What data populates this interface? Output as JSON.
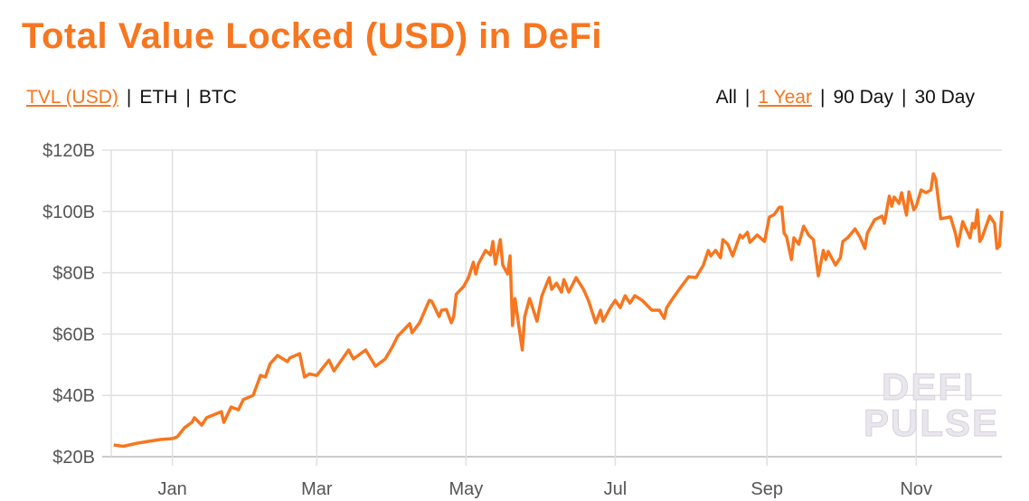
{
  "title": "Total Value Locked (USD) in DeFi",
  "metric_tabs": [
    {
      "label": "TVL (USD)",
      "active": true
    },
    {
      "label": "ETH",
      "active": false
    },
    {
      "label": "BTC",
      "active": false
    }
  ],
  "range_tabs": [
    {
      "label": "All",
      "active": false
    },
    {
      "label": "1 Year",
      "active": true
    },
    {
      "label": "90 Day",
      "active": false
    },
    {
      "label": "30 Day",
      "active": false
    }
  ],
  "separator": "|",
  "watermark": [
    "DEFI",
    "PULSE"
  ],
  "colors": {
    "accent": "#f7761f",
    "line": "#f7761f",
    "grid": "#e0e0e0"
  },
  "chart_data": {
    "type": "line",
    "title": "Total Value Locked (USD) in DeFi",
    "xlabel": "",
    "ylabel": "",
    "xlim": [
      "2020-12-07",
      "2021-12-06"
    ],
    "ylim": [
      20,
      120
    ],
    "y_unit": "B USD",
    "yticks": [
      {
        "v": 20,
        "label": "$20B"
      },
      {
        "v": 40,
        "label": "$40B"
      },
      {
        "v": 60,
        "label": "$60B"
      },
      {
        "v": 80,
        "label": "$80B"
      },
      {
        "v": 100,
        "label": "$100B"
      },
      {
        "v": 120,
        "label": "$120B"
      }
    ],
    "xticks": [
      {
        "d": "2021-01-01",
        "label": "Jan"
      },
      {
        "d": "2021-03-01",
        "label": "Mar"
      },
      {
        "d": "2021-05-01",
        "label": "May"
      },
      {
        "d": "2021-07-01",
        "label": "Jul"
      },
      {
        "d": "2021-09-01",
        "label": "Sep"
      },
      {
        "d": "2021-11-01",
        "label": "Nov"
      }
    ],
    "grid": true,
    "series": [
      {
        "points": [
          [
            "2020-12-08",
            23.8
          ],
          [
            "2020-12-12",
            23.4
          ],
          [
            "2020-12-17",
            24.3
          ],
          [
            "2020-12-22",
            25.0
          ],
          [
            "2020-12-27",
            25.6
          ],
          [
            "2021-01-01",
            25.9
          ],
          [
            "2021-01-03",
            26.5
          ],
          [
            "2021-01-06",
            29.5
          ],
          [
            "2021-01-09",
            31.2
          ],
          [
            "2021-01-10",
            32.7
          ],
          [
            "2021-01-13",
            30.3
          ],
          [
            "2021-01-15",
            32.7
          ],
          [
            "2021-01-21",
            34.7
          ],
          [
            "2021-01-22",
            31.2
          ],
          [
            "2021-01-25",
            36.2
          ],
          [
            "2021-01-28",
            35.3
          ],
          [
            "2021-01-30",
            38.6
          ],
          [
            "2021-02-03",
            40
          ],
          [
            "2021-02-06",
            46.5
          ],
          [
            "2021-02-08",
            46
          ],
          [
            "2021-02-10",
            50.4
          ],
          [
            "2021-02-13",
            53
          ],
          [
            "2021-02-17",
            51
          ],
          [
            "2021-02-18",
            52.2
          ],
          [
            "2021-02-22",
            53.6
          ],
          [
            "2021-02-24",
            46
          ],
          [
            "2021-02-26",
            47
          ],
          [
            "2021-03-01",
            46.5
          ],
          [
            "2021-03-06",
            51.5
          ],
          [
            "2021-03-08",
            48
          ],
          [
            "2021-03-14",
            54.8
          ],
          [
            "2021-03-16",
            51.9
          ],
          [
            "2021-03-21",
            54.8
          ],
          [
            "2021-03-25",
            49.5
          ],
          [
            "2021-03-29",
            51.9
          ],
          [
            "2021-04-01",
            56
          ],
          [
            "2021-04-03",
            59.2
          ],
          [
            "2021-04-08",
            63.4
          ],
          [
            "2021-04-09",
            60.4
          ],
          [
            "2021-04-12",
            63.7
          ],
          [
            "2021-04-16",
            71
          ],
          [
            "2021-04-17",
            70.7
          ],
          [
            "2021-04-20",
            65.7
          ],
          [
            "2021-04-21",
            67.8
          ],
          [
            "2021-04-23",
            68
          ],
          [
            "2021-04-25",
            63.7
          ],
          [
            "2021-04-26",
            65.7
          ],
          [
            "2021-04-27",
            73
          ],
          [
            "2021-04-30",
            75.5
          ],
          [
            "2021-05-02",
            78.4
          ],
          [
            "2021-05-04",
            83.4
          ],
          [
            "2021-05-05",
            79.6
          ],
          [
            "2021-05-06",
            82.8
          ],
          [
            "2021-05-09",
            87.3
          ],
          [
            "2021-05-11",
            85.8
          ],
          [
            "2021-05-12",
            90.2
          ],
          [
            "2021-05-13",
            82.8
          ],
          [
            "2021-05-15",
            90.8
          ],
          [
            "2021-05-16",
            82.5
          ],
          [
            "2021-05-18",
            79.6
          ],
          [
            "2021-05-19",
            85.5
          ],
          [
            "2021-05-20",
            62.8
          ],
          [
            "2021-05-21",
            71.6
          ],
          [
            "2021-05-24",
            54.8
          ],
          [
            "2021-05-25",
            65.7
          ],
          [
            "2021-05-27",
            71.6
          ],
          [
            "2021-05-30",
            64.2
          ],
          [
            "2021-06-01",
            72.5
          ],
          [
            "2021-06-04",
            78.4
          ],
          [
            "2021-06-05",
            74.6
          ],
          [
            "2021-06-07",
            76.6
          ],
          [
            "2021-06-09",
            73.7
          ],
          [
            "2021-06-10",
            77.8
          ],
          [
            "2021-06-12",
            73.7
          ],
          [
            "2021-06-15",
            78.4
          ],
          [
            "2021-06-18",
            74.6
          ],
          [
            "2021-06-20",
            71
          ],
          [
            "2021-06-23",
            63.7
          ],
          [
            "2021-06-25",
            67.8
          ],
          [
            "2021-06-26",
            64.2
          ],
          [
            "2021-06-29",
            68.6
          ],
          [
            "2021-07-01",
            71
          ],
          [
            "2021-07-03",
            68.6
          ],
          [
            "2021-07-05",
            72.5
          ],
          [
            "2021-07-07",
            70.1
          ],
          [
            "2021-07-09",
            72.5
          ],
          [
            "2021-07-12",
            71
          ],
          [
            "2021-07-16",
            67.8
          ],
          [
            "2021-07-19",
            67.8
          ],
          [
            "2021-07-21",
            65.1
          ],
          [
            "2021-07-22",
            68.6
          ],
          [
            "2021-07-25",
            72.2
          ],
          [
            "2021-07-28",
            75.5
          ],
          [
            "2021-07-31",
            78.7
          ],
          [
            "2021-08-03",
            78.4
          ],
          [
            "2021-08-06",
            82.5
          ],
          [
            "2021-08-08",
            87.3
          ],
          [
            "2021-08-09",
            85.5
          ],
          [
            "2021-08-11",
            87.3
          ],
          [
            "2021-08-13",
            84.9
          ],
          [
            "2021-08-14",
            90.8
          ],
          [
            "2021-08-16",
            89.3
          ],
          [
            "2021-08-18",
            85.5
          ],
          [
            "2021-08-21",
            92.3
          ],
          [
            "2021-08-22",
            91.4
          ],
          [
            "2021-08-24",
            93.2
          ],
          [
            "2021-08-25",
            89.9
          ],
          [
            "2021-08-28",
            92.3
          ],
          [
            "2021-08-31",
            90.2
          ],
          [
            "2021-09-02",
            98.2
          ],
          [
            "2021-09-04",
            99
          ],
          [
            "2021-09-06",
            101.4
          ],
          [
            "2021-09-07",
            101.4
          ],
          [
            "2021-09-08",
            92.9
          ],
          [
            "2021-09-09",
            91.7
          ],
          [
            "2021-09-11",
            84.3
          ],
          [
            "2021-09-12",
            91.4
          ],
          [
            "2021-09-14",
            89.3
          ],
          [
            "2021-09-16",
            95.2
          ],
          [
            "2021-09-18",
            92.3
          ],
          [
            "2021-09-20",
            90.8
          ],
          [
            "2021-09-22",
            79
          ],
          [
            "2021-09-24",
            87.3
          ],
          [
            "2021-09-25",
            84.3
          ],
          [
            "2021-09-26",
            87
          ],
          [
            "2021-09-29",
            82.5
          ],
          [
            "2021-10-01",
            84.9
          ],
          [
            "2021-10-02",
            90.2
          ],
          [
            "2021-10-04",
            91.4
          ],
          [
            "2021-10-07",
            94.3
          ],
          [
            "2021-10-09",
            91.7
          ],
          [
            "2021-10-11",
            87.9
          ],
          [
            "2021-10-12",
            92.9
          ],
          [
            "2021-10-15",
            97.3
          ],
          [
            "2021-10-18",
            98.5
          ],
          [
            "2021-10-19",
            96.1
          ],
          [
            "2021-10-21",
            105
          ],
          [
            "2021-10-22",
            101.7
          ],
          [
            "2021-10-23",
            104.7
          ],
          [
            "2021-10-25",
            102.6
          ],
          [
            "2021-10-26",
            106.1
          ],
          [
            "2021-10-28",
            98.8
          ],
          [
            "2021-10-29",
            106.4
          ],
          [
            "2021-10-31",
            100.5
          ],
          [
            "2021-11-01",
            101.7
          ],
          [
            "2021-11-03",
            107
          ],
          [
            "2021-11-05",
            106.1
          ],
          [
            "2021-11-07",
            107
          ],
          [
            "2021-11-08",
            112.3
          ],
          [
            "2021-11-09",
            110.5
          ],
          [
            "2021-11-11",
            97.6
          ],
          [
            "2021-11-15",
            98.2
          ],
          [
            "2021-11-17",
            92.9
          ],
          [
            "2021-11-18",
            88.7
          ],
          [
            "2021-11-20",
            96.7
          ],
          [
            "2021-11-23",
            91.4
          ],
          [
            "2021-11-24",
            96.1
          ],
          [
            "2021-11-25",
            94.6
          ],
          [
            "2021-11-26",
            100.5
          ],
          [
            "2021-11-27",
            90.2
          ],
          [
            "2021-11-28",
            91.7
          ],
          [
            "2021-12-01",
            98.5
          ],
          [
            "2021-12-03",
            96.1
          ],
          [
            "2021-12-04",
            87.9
          ],
          [
            "2021-12-05",
            88.7
          ],
          [
            "2021-12-06",
            100.2
          ]
        ]
      }
    ]
  }
}
